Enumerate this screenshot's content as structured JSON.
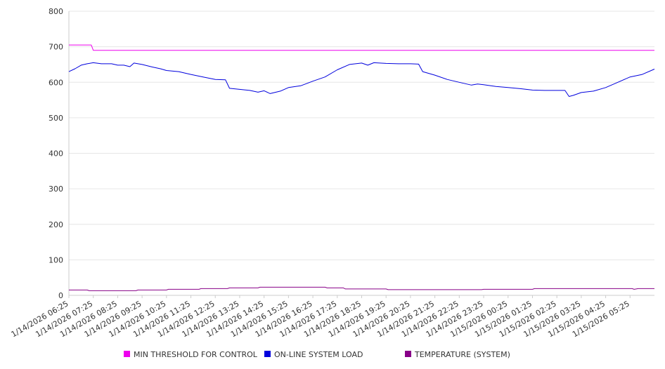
{
  "chart_data": {
    "type": "line",
    "title": "",
    "xlabel": "",
    "ylabel": "",
    "ylim": [
      0,
      800
    ],
    "yticks": [
      0,
      100,
      200,
      300,
      400,
      500,
      600,
      700,
      800
    ],
    "grid": "horizontal",
    "legend_position": "bottom",
    "x_start": "1/14/2026 06:25",
    "x_end": "1/15/2026 06:25",
    "xticks": [
      "1/14/2026 06:25",
      "1/14/2026 07:25",
      "1/14/2026 08:25",
      "1/14/2026 09:25",
      "1/14/2026 10:25",
      "1/14/2026 11:25",
      "1/14/2026 12:25",
      "1/14/2026 13:25",
      "1/14/2026 14:25",
      "1/14/2026 15:25",
      "1/14/2026 16:25",
      "1/14/2026 17:25",
      "1/14/2026 18:25",
      "1/14/2026 19:25",
      "1/14/2026 20:25",
      "1/14/2026 21:25",
      "1/14/2026 22:25",
      "1/14/2026 23:25",
      "1/15/2026 00:25",
      "1/15/2026 01:25",
      "1/15/2026 02:25",
      "1/15/2026 03:25",
      "1/15/2026 04:25",
      "1/15/2026 05:25"
    ],
    "series": [
      {
        "name": "MIN THRESHOLD FOR CONTROL",
        "color": "#ee00ee",
        "points": [
          [
            "1/14/2026 06:25",
            705
          ],
          [
            "1/14/2026 07:20",
            705
          ],
          [
            "1/14/2026 07:25",
            690
          ],
          [
            "1/15/2026 06:25",
            690
          ]
        ]
      },
      {
        "name": "ON-LINE SYSTEM LOAD",
        "color": "#0000dd",
        "points": [
          [
            "1/14/2026 06:25",
            630
          ],
          [
            "1/14/2026 06:40",
            638
          ],
          [
            "1/14/2026 06:55",
            648
          ],
          [
            "1/14/2026 07:10",
            652
          ],
          [
            "1/14/2026 07:25",
            655
          ],
          [
            "1/14/2026 07:45",
            652
          ],
          [
            "1/14/2026 08:10",
            652
          ],
          [
            "1/14/2026 08:25",
            648
          ],
          [
            "1/14/2026 08:40",
            648
          ],
          [
            "1/14/2026 08:55",
            644
          ],
          [
            "1/14/2026 09:05",
            654
          ],
          [
            "1/14/2026 09:25",
            650
          ],
          [
            "1/14/2026 09:50",
            643
          ],
          [
            "1/14/2026 10:10",
            638
          ],
          [
            "1/14/2026 10:25",
            633
          ],
          [
            "1/14/2026 10:55",
            630
          ],
          [
            "1/14/2026 11:25",
            622
          ],
          [
            "1/14/2026 11:55",
            615
          ],
          [
            "1/14/2026 12:25",
            608
          ],
          [
            "1/14/2026 12:50",
            607
          ],
          [
            "1/14/2026 13:00",
            583
          ],
          [
            "1/14/2026 13:25",
            580
          ],
          [
            "1/14/2026 13:50",
            577
          ],
          [
            "1/14/2026 14:10",
            572
          ],
          [
            "1/14/2026 14:25",
            576
          ],
          [
            "1/14/2026 14:40",
            568
          ],
          [
            "1/14/2026 15:05",
            575
          ],
          [
            "1/14/2026 15:25",
            585
          ],
          [
            "1/14/2026 15:55",
            590
          ],
          [
            "1/14/2026 16:25",
            603
          ],
          [
            "1/14/2026 16:55",
            615
          ],
          [
            "1/14/2026 17:25",
            635
          ],
          [
            "1/14/2026 17:55",
            650
          ],
          [
            "1/14/2026 18:25",
            654
          ],
          [
            "1/14/2026 18:40",
            648
          ],
          [
            "1/14/2026 18:55",
            655
          ],
          [
            "1/14/2026 19:25",
            653
          ],
          [
            "1/14/2026 19:55",
            652
          ],
          [
            "1/14/2026 20:25",
            652
          ],
          [
            "1/14/2026 20:45",
            651
          ],
          [
            "1/14/2026 20:55",
            630
          ],
          [
            "1/14/2026 21:25",
            620
          ],
          [
            "1/14/2026 21:55",
            608
          ],
          [
            "1/14/2026 22:25",
            600
          ],
          [
            "1/14/2026 22:55",
            592
          ],
          [
            "1/14/2026 23:10",
            595
          ],
          [
            "1/14/2026 23:25",
            593
          ],
          [
            "1/14/2026 23:55",
            588
          ],
          [
            "1/15/2026 00:25",
            585
          ],
          [
            "1/15/2026 00:55",
            582
          ],
          [
            "1/15/2026 01:25",
            578
          ],
          [
            "1/15/2026 01:55",
            577
          ],
          [
            "1/15/2026 02:25",
            577
          ],
          [
            "1/15/2026 02:45",
            577
          ],
          [
            "1/15/2026 02:55",
            560
          ],
          [
            "1/15/2026 03:05",
            563
          ],
          [
            "1/15/2026 03:25",
            571
          ],
          [
            "1/15/2026 03:55",
            575
          ],
          [
            "1/15/2026 04:25",
            585
          ],
          [
            "1/15/2026 04:55",
            600
          ],
          [
            "1/15/2026 05:25",
            615
          ],
          [
            "1/15/2026 05:55",
            622
          ],
          [
            "1/15/2026 06:25",
            637
          ]
        ]
      },
      {
        "name": "TEMPERATURE (SYSTEM)",
        "color": "#880088",
        "points": [
          [
            "1/14/2026 06:25",
            15
          ],
          [
            "1/14/2026 07:10",
            15
          ],
          [
            "1/14/2026 07:15",
            13
          ],
          [
            "1/14/2026 09:10",
            13
          ],
          [
            "1/14/2026 09:15",
            15
          ],
          [
            "1/14/2026 10:25",
            15
          ],
          [
            "1/14/2026 10:30",
            17
          ],
          [
            "1/14/2026 11:45",
            17
          ],
          [
            "1/14/2026 11:50",
            19
          ],
          [
            "1/14/2026 12:55",
            19
          ],
          [
            "1/14/2026 13:00",
            21
          ],
          [
            "1/14/2026 14:10",
            21
          ],
          [
            "1/14/2026 14:15",
            23
          ],
          [
            "1/14/2026 16:55",
            23
          ],
          [
            "1/14/2026 17:00",
            21
          ],
          [
            "1/14/2026 17:40",
            21
          ],
          [
            "1/14/2026 17:45",
            18
          ],
          [
            "1/14/2026 19:25",
            18
          ],
          [
            "1/14/2026 19:30",
            16
          ],
          [
            "1/14/2026 23:20",
            16
          ],
          [
            "1/14/2026 23:25",
            17
          ],
          [
            "1/15/2026 01:25",
            17
          ],
          [
            "1/15/2026 01:30",
            19
          ],
          [
            "1/15/2026 05:30",
            19
          ],
          [
            "1/15/2026 05:35",
            17
          ],
          [
            "1/15/2026 05:45",
            19
          ],
          [
            "1/15/2026 06:25",
            19
          ]
        ]
      }
    ]
  }
}
